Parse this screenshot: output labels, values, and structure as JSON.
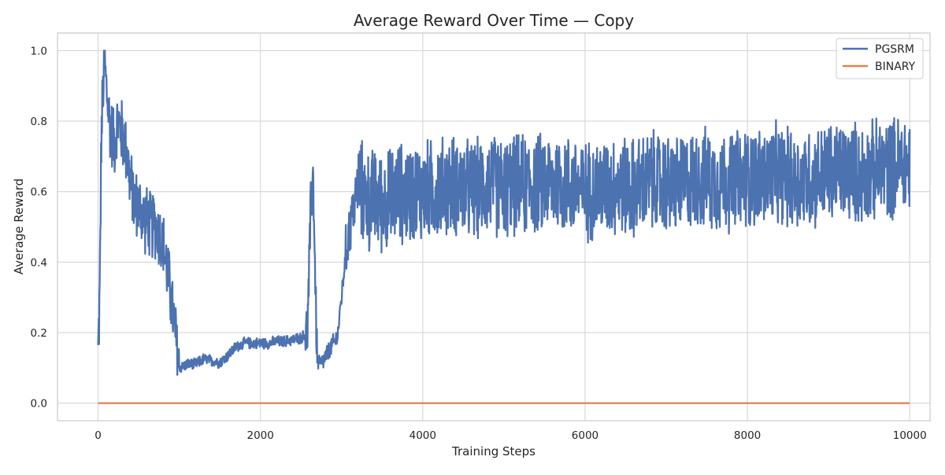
{
  "chart_data": {
    "type": "line",
    "title": "Average Reward Over Time — Copy",
    "xlabel": "Training Steps",
    "ylabel": "Average Reward",
    "xlim": [
      -500,
      10250
    ],
    "ylim": [
      -0.05,
      1.05
    ],
    "xticks": [
      0,
      2000,
      4000,
      6000,
      8000,
      10000
    ],
    "xtick_labels": [
      "0",
      "2000",
      "4000",
      "6000",
      "8000",
      "10000"
    ],
    "yticks": [
      0.0,
      0.2,
      0.4,
      0.6,
      0.8,
      1.0
    ],
    "ytick_labels": [
      "0.0",
      "0.2",
      "0.4",
      "0.6",
      "0.8",
      "1.0"
    ],
    "grid": true,
    "legend_position": "top-right",
    "series": [
      {
        "name": "PGSRM",
        "color": "#4c72b0",
        "x": [
          0,
          20,
          40,
          60,
          80,
          100,
          120,
          150,
          200,
          250,
          300,
          350,
          400,
          450,
          500,
          550,
          600,
          650,
          700,
          750,
          800,
          850,
          900,
          950,
          1000,
          1100,
          1200,
          1300,
          1400,
          1500,
          1600,
          1700,
          1800,
          1900,
          2000,
          2100,
          2200,
          2300,
          2400,
          2500,
          2580,
          2620,
          2650,
          2680,
          2700,
          2750,
          2800,
          2850,
          2900,
          2950,
          3000,
          3050,
          3100,
          3150,
          3200,
          3250,
          3300,
          3350,
          3400,
          3500,
          3600,
          3700,
          3800,
          3900,
          4000,
          4200,
          4400,
          4600,
          4800,
          5000,
          5200,
          5400,
          5600,
          5800,
          6000,
          6200,
          6400,
          6600,
          6800,
          7000,
          7200,
          7400,
          7600,
          7800,
          8000,
          8200,
          8400,
          8600,
          8800,
          9000,
          9200,
          9400,
          9600,
          9800,
          10000
        ],
        "y": [
          0.14,
          0.3,
          0.75,
          0.88,
          0.97,
          0.9,
          0.85,
          0.78,
          0.74,
          0.8,
          0.76,
          0.72,
          0.62,
          0.57,
          0.56,
          0.53,
          0.52,
          0.5,
          0.51,
          0.48,
          0.45,
          0.38,
          0.3,
          0.2,
          0.1,
          0.11,
          0.11,
          0.125,
          0.12,
          0.115,
          0.135,
          0.16,
          0.17,
          0.17,
          0.17,
          0.17,
          0.175,
          0.175,
          0.18,
          0.185,
          0.2,
          0.55,
          0.65,
          0.3,
          0.12,
          0.11,
          0.13,
          0.15,
          0.17,
          0.19,
          0.3,
          0.42,
          0.5,
          0.55,
          0.62,
          0.6,
          0.58,
          0.57,
          0.58,
          0.57,
          0.58,
          0.6,
          0.59,
          0.6,
          0.6,
          0.61,
          0.62,
          0.6,
          0.62,
          0.61,
          0.62,
          0.62,
          0.63,
          0.62,
          0.6,
          0.61,
          0.62,
          0.61,
          0.63,
          0.62,
          0.62,
          0.64,
          0.63,
          0.63,
          0.64,
          0.64,
          0.65,
          0.63,
          0.64,
          0.65,
          0.66,
          0.65,
          0.66,
          0.67,
          0.68
        ]
      },
      {
        "name": "BINARY",
        "color": "#dd8452",
        "x": [
          0,
          10000
        ],
        "y": [
          0.0,
          0.0
        ]
      }
    ]
  }
}
